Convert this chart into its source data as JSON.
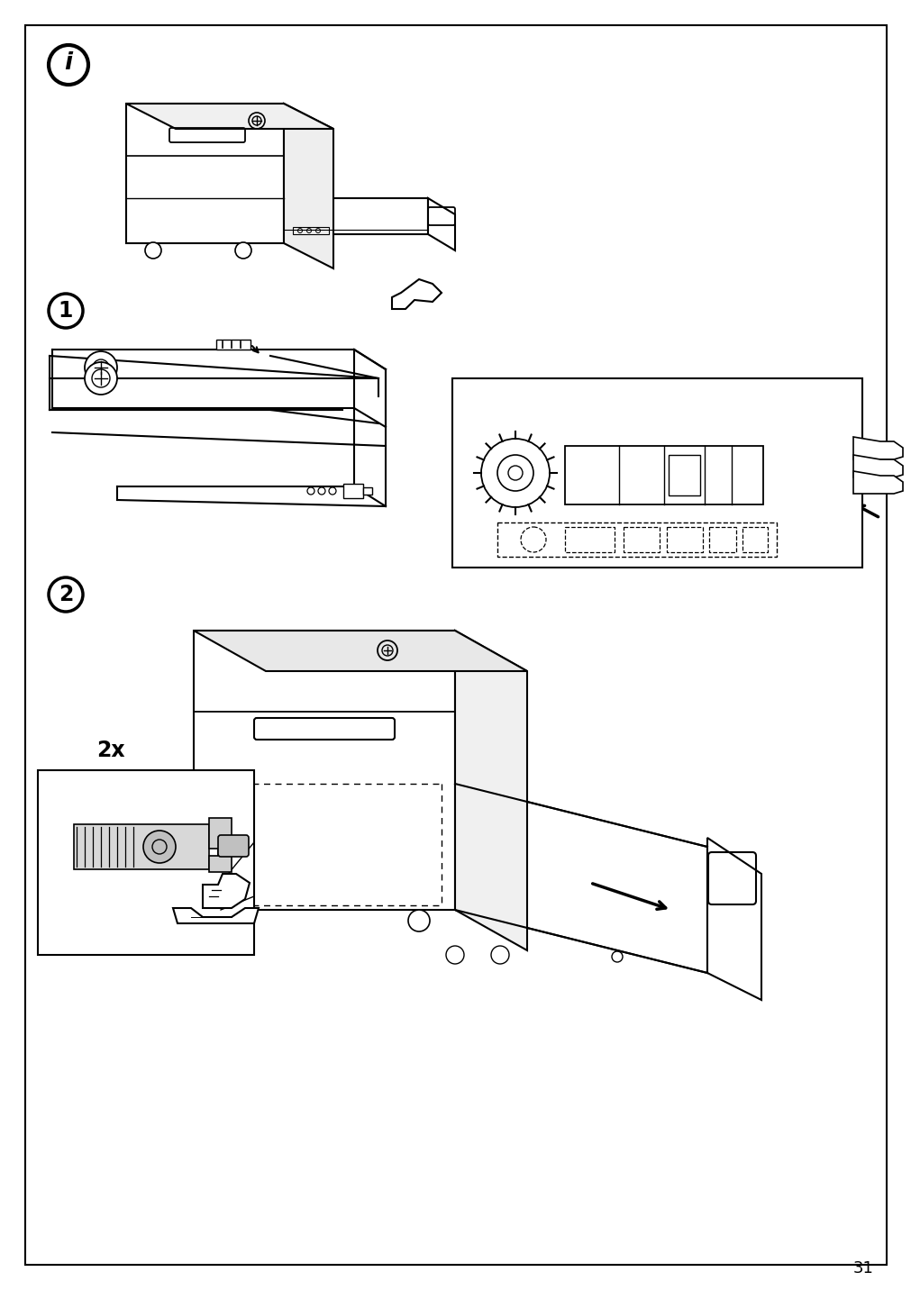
{
  "page_number": "31",
  "bg": "#ffffff",
  "border": "#000000",
  "lc": "#000000",
  "pw": 1012,
  "ph": 1432,
  "bm": 28
}
